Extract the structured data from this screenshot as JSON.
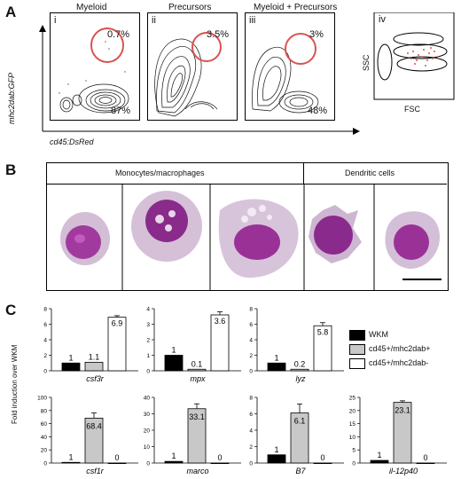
{
  "panel_a": {
    "letter": "A",
    "y_axis": "mhc2dab:GFP",
    "x_axis": "cd45:DsRed",
    "plots": [
      {
        "roman": "i",
        "title": "Myeloid",
        "top_pct": "0.7%",
        "bottom_pct": "87%"
      },
      {
        "roman": "ii",
        "title": "Precursors",
        "top_pct": "3.5%",
        "bottom_pct": ""
      },
      {
        "roman": "iii",
        "title": "Myeloid + Precursors",
        "top_pct": "3%",
        "bottom_pct": "48%"
      }
    ],
    "scatter": {
      "roman": "iv",
      "y_axis": "SSC",
      "x_axis": "FSC"
    }
  },
  "panel_b": {
    "letter": "B",
    "group_monocytes": "Monocytes/macrophages",
    "group_dendritic": "Dendritic cells"
  },
  "panel_c": {
    "letter": "C",
    "y_axis": "Fold induction over WKM",
    "legend": [
      "WKM",
      "cd45+/mhc2dab+",
      "cd45+/mhc2dab-"
    ],
    "colors": {
      "wkm": "#000000",
      "pos": "#c8c8c8",
      "neg": "#ffffff"
    }
  },
  "chart_data": [
    {
      "type": "bar",
      "gene": "csf3r",
      "ylim": [
        0,
        8
      ],
      "yticks": [
        0,
        2,
        4,
        6,
        8
      ],
      "values": [
        1,
        1.1,
        6.9
      ],
      "errors": [
        0,
        0,
        0.2
      ],
      "labels": [
        "1",
        "1.1",
        "6.9"
      ]
    },
    {
      "type": "bar",
      "gene": "mpx",
      "ylim": [
        0,
        4
      ],
      "yticks": [
        0,
        1,
        2,
        3,
        4
      ],
      "values": [
        1,
        0.1,
        3.6
      ],
      "errors": [
        0,
        0,
        0.2
      ],
      "labels": [
        "1",
        "0.1",
        "3.6"
      ]
    },
    {
      "type": "bar",
      "gene": "lyz",
      "ylim": [
        0,
        8
      ],
      "yticks": [
        0,
        2,
        4,
        6,
        8
      ],
      "values": [
        1,
        0.2,
        5.8
      ],
      "errors": [
        0,
        0,
        0.4
      ],
      "labels": [
        "1",
        "0.2",
        "5.8"
      ]
    },
    {
      "type": "bar",
      "gene": "csf1r",
      "ylim": [
        0,
        100
      ],
      "yticks": [
        0,
        20,
        40,
        60,
        80,
        100
      ],
      "values": [
        1,
        68.4,
        0
      ],
      "errors": [
        0,
        8,
        0
      ],
      "labels": [
        "1",
        "68.4",
        "0"
      ]
    },
    {
      "type": "bar",
      "gene": "marco",
      "ylim": [
        0,
        40
      ],
      "yticks": [
        0,
        10,
        20,
        30,
        40
      ],
      "values": [
        1,
        33.1,
        0
      ],
      "errors": [
        0,
        3,
        0
      ],
      "labels": [
        "1",
        "33.1",
        "0"
      ]
    },
    {
      "type": "bar",
      "gene": "B7",
      "ylim": [
        0,
        8
      ],
      "yticks": [
        0,
        2,
        4,
        6,
        8
      ],
      "values": [
        1,
        6.1,
        0
      ],
      "errors": [
        0,
        1.1,
        0
      ],
      "labels": [
        "1",
        "6.1",
        "0"
      ]
    },
    {
      "type": "bar",
      "gene": "il-12p40",
      "ylim": [
        0,
        25
      ],
      "yticks": [
        0,
        5,
        10,
        15,
        20,
        25
      ],
      "values": [
        1,
        23.1,
        0
      ],
      "errors": [
        0,
        0.6,
        0
      ],
      "labels": [
        "1",
        "23.1",
        "0"
      ]
    }
  ]
}
